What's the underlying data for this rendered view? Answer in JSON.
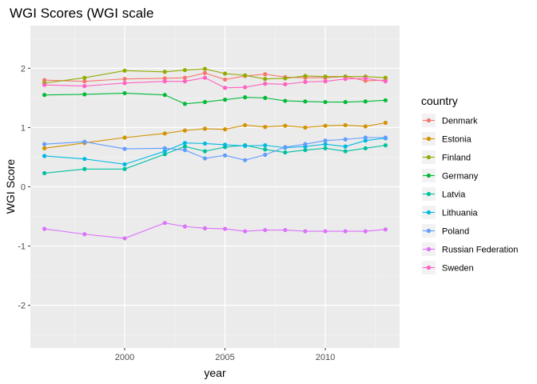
{
  "chart_data": {
    "type": "line",
    "title": "WGI Scores (WGI scale",
    "xlabel": "year",
    "ylabel": "WGI Score",
    "xlim": [
      1995.3,
      2013.7
    ],
    "ylim": [
      -2.72,
      2.72
    ],
    "x_ticks": [
      2000,
      2005,
      2010
    ],
    "y_ticks": [
      -2,
      -1,
      0,
      1,
      2
    ],
    "grid": true,
    "legend": {
      "title": "country",
      "placement": "right"
    },
    "x": [
      1996,
      1998,
      2000,
      2002,
      2003,
      2004,
      2005,
      2006,
      2007,
      2008,
      2009,
      2010,
      2011,
      2012,
      2013
    ],
    "series": [
      {
        "name": "Denmark",
        "color": "#F8766D",
        "values": [
          1.8,
          1.78,
          1.82,
          1.83,
          1.84,
          1.92,
          1.81,
          1.87,
          1.9,
          1.85,
          1.84,
          1.84,
          1.86,
          1.79,
          1.8
        ]
      },
      {
        "name": "Estonia",
        "color": "#D39200",
        "values": [
          0.65,
          0.74,
          0.83,
          0.9,
          0.95,
          0.98,
          0.97,
          1.04,
          1.01,
          1.03,
          1.0,
          1.03,
          1.04,
          1.02,
          1.08
        ]
      },
      {
        "name": "Finland",
        "color": "#93AA00",
        "values": [
          1.75,
          1.84,
          1.96,
          1.94,
          1.97,
          1.99,
          1.91,
          1.88,
          1.82,
          1.83,
          1.87,
          1.86,
          1.86,
          1.86,
          1.84
        ]
      },
      {
        "name": "Germany",
        "color": "#00BA38",
        "values": [
          1.55,
          1.56,
          1.58,
          1.55,
          1.4,
          1.43,
          1.47,
          1.51,
          1.5,
          1.45,
          1.44,
          1.43,
          1.43,
          1.44,
          1.46
        ]
      },
      {
        "name": "Latvia",
        "color": "#00C19F",
        "values": [
          0.23,
          0.3,
          0.3,
          0.55,
          0.68,
          0.6,
          0.67,
          0.7,
          0.63,
          0.58,
          0.62,
          0.65,
          0.6,
          0.65,
          0.7
        ]
      },
      {
        "name": "Lithuania",
        "color": "#00B9E3",
        "values": [
          0.52,
          0.47,
          0.38,
          0.6,
          0.74,
          0.73,
          0.71,
          0.69,
          0.7,
          0.66,
          0.68,
          0.72,
          0.68,
          0.78,
          0.82
        ]
      },
      {
        "name": "Poland",
        "color": "#619CFF",
        "values": [
          0.72,
          0.76,
          0.64,
          0.65,
          0.62,
          0.48,
          0.53,
          0.45,
          0.54,
          0.67,
          0.72,
          0.78,
          0.8,
          0.83,
          0.83
        ]
      },
      {
        "name": "Russian Federation",
        "color": "#DB72FB",
        "values": [
          -0.71,
          -0.8,
          -0.87,
          -0.61,
          -0.67,
          -0.7,
          -0.71,
          -0.75,
          -0.73,
          -0.73,
          -0.75,
          -0.75,
          -0.75,
          -0.75,
          -0.72
        ]
      },
      {
        "name": "Sweden",
        "color": "#FF61C3",
        "values": [
          1.72,
          1.7,
          1.75,
          1.78,
          1.78,
          1.84,
          1.67,
          1.68,
          1.74,
          1.73,
          1.77,
          1.78,
          1.82,
          1.83,
          1.78
        ]
      }
    ]
  }
}
